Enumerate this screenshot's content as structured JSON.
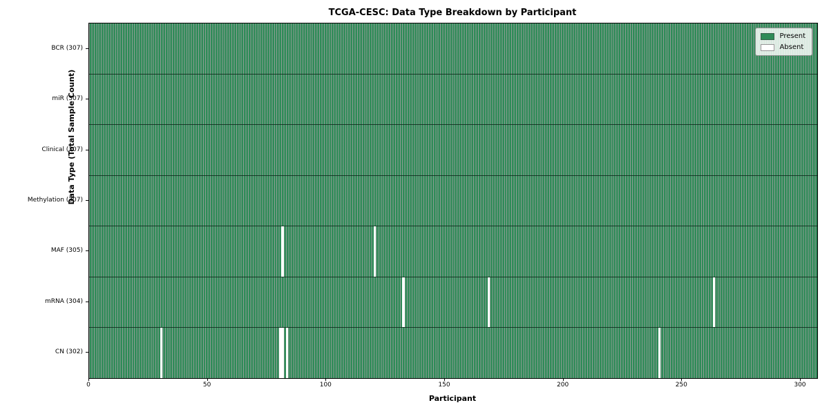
{
  "chart_data": {
    "type": "heatmap",
    "title": "TCGA-CESC: Data Type Breakdown by Participant",
    "xlabel": "Participant",
    "ylabel": "Data Type (Total Sample Count)",
    "n_participants": 307,
    "x_ticks": [
      0,
      50,
      100,
      150,
      200,
      250,
      300
    ],
    "xlim": [
      0,
      307
    ],
    "grid": false,
    "legend_position": "upper right",
    "legend": [
      {
        "label": "Present",
        "color": "#2e8b57"
      },
      {
        "label": "Absent",
        "color": "#ffffff"
      }
    ],
    "rows": [
      {
        "name": "BCR",
        "label": "BCR (307)",
        "present_count": 307,
        "absent_participants": []
      },
      {
        "name": "miR",
        "label": "miR (307)",
        "present_count": 307,
        "absent_participants": []
      },
      {
        "name": "Clinical",
        "label": "Clinical (307)",
        "present_count": 307,
        "absent_participants": []
      },
      {
        "name": "Methylation",
        "label": "Methylation (307)",
        "present_count": 307,
        "absent_participants": []
      },
      {
        "name": "MAF",
        "label": "MAF (305)",
        "present_count": 305,
        "absent_participants": [
          81,
          120
        ]
      },
      {
        "name": "mRNA",
        "label": "mRNA (304)",
        "present_count": 304,
        "absent_participants": [
          132,
          168,
          263
        ]
      },
      {
        "name": "CN",
        "label": "CN (302)",
        "present_count": 302,
        "absent_participants": [
          30,
          80,
          81,
          83,
          240
        ]
      }
    ],
    "colors": {
      "present": "#2e8b57",
      "absent": "#ffffff",
      "cell_edge": "rgba(10, 40, 25, 0.45)",
      "row_divider": "rgba(5, 25, 15, 0.75)",
      "plot_border": "#000000"
    }
  }
}
